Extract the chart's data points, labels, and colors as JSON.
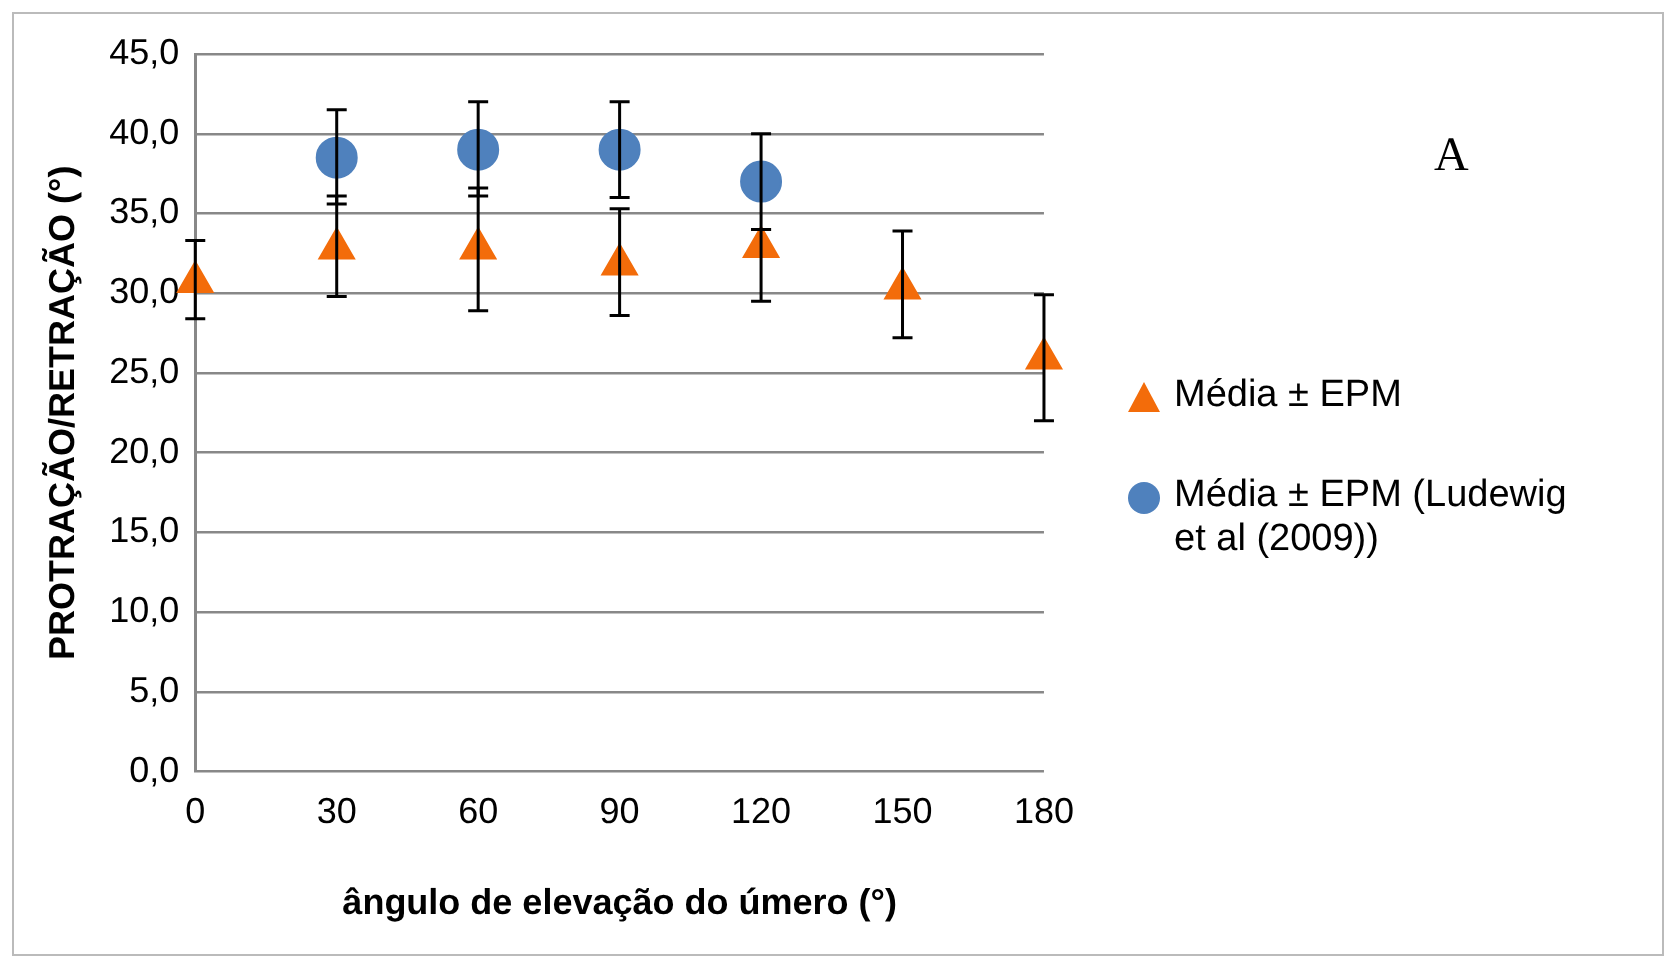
{
  "chart_data": {
    "type": "scatter",
    "xlabel": "ângulo de elevação do úmero (°)",
    "ylabel": "PROTRAÇÃO/RETRAÇÃO (°)",
    "annotations": [
      "A"
    ],
    "series": [
      {
        "name": "Média ± EPM",
        "color": "#f36c0a",
        "marker": "triangle",
        "x": [
          0,
          30,
          60,
          90,
          120,
          150,
          180
        ],
        "values": [
          30.7,
          32.8,
          32.8,
          31.8,
          32.9,
          30.3,
          25.9
        ],
        "errors": [
          [
            28.4,
            33.3
          ],
          [
            29.8,
            36.1
          ],
          [
            28.9,
            36.6
          ],
          [
            28.6,
            35.3
          ],
          [
            29.5,
            34.0
          ],
          [
            27.2,
            33.9
          ],
          [
            22.0,
            29.9
          ]
        ]
      },
      {
        "name": "Média ± EPM (Ludewig et al (2009))",
        "color": "#4f81bd",
        "marker": "circle",
        "x": [
          30,
          60,
          90,
          120
        ],
        "values": [
          38.5,
          39.0,
          39.0,
          37.0
        ],
        "errors": [
          [
            35.6,
            41.5
          ],
          [
            36.1,
            42.0
          ],
          [
            36.0,
            42.0
          ],
          [
            34.0,
            40.0
          ]
        ]
      }
    ],
    "xlim": [
      0,
      180
    ],
    "xticks": [
      0,
      30,
      60,
      90,
      120,
      150,
      180
    ],
    "ylim": [
      0,
      45
    ],
    "yticks": [
      {
        "value": 0,
        "label": "0,0"
      },
      {
        "value": 5,
        "label": "5,0"
      },
      {
        "value": 10,
        "label": "10,0"
      },
      {
        "value": 15,
        "label": "15,0"
      },
      {
        "value": 20,
        "label": "20,0"
      },
      {
        "value": 25,
        "label": "25,0"
      },
      {
        "value": 30,
        "label": "30,0"
      },
      {
        "value": 35,
        "label": "35,0"
      },
      {
        "value": 40,
        "label": "40,0"
      },
      {
        "value": 45,
        "label": "45,0"
      }
    ],
    "grid": "y",
    "legend": "right"
  }
}
